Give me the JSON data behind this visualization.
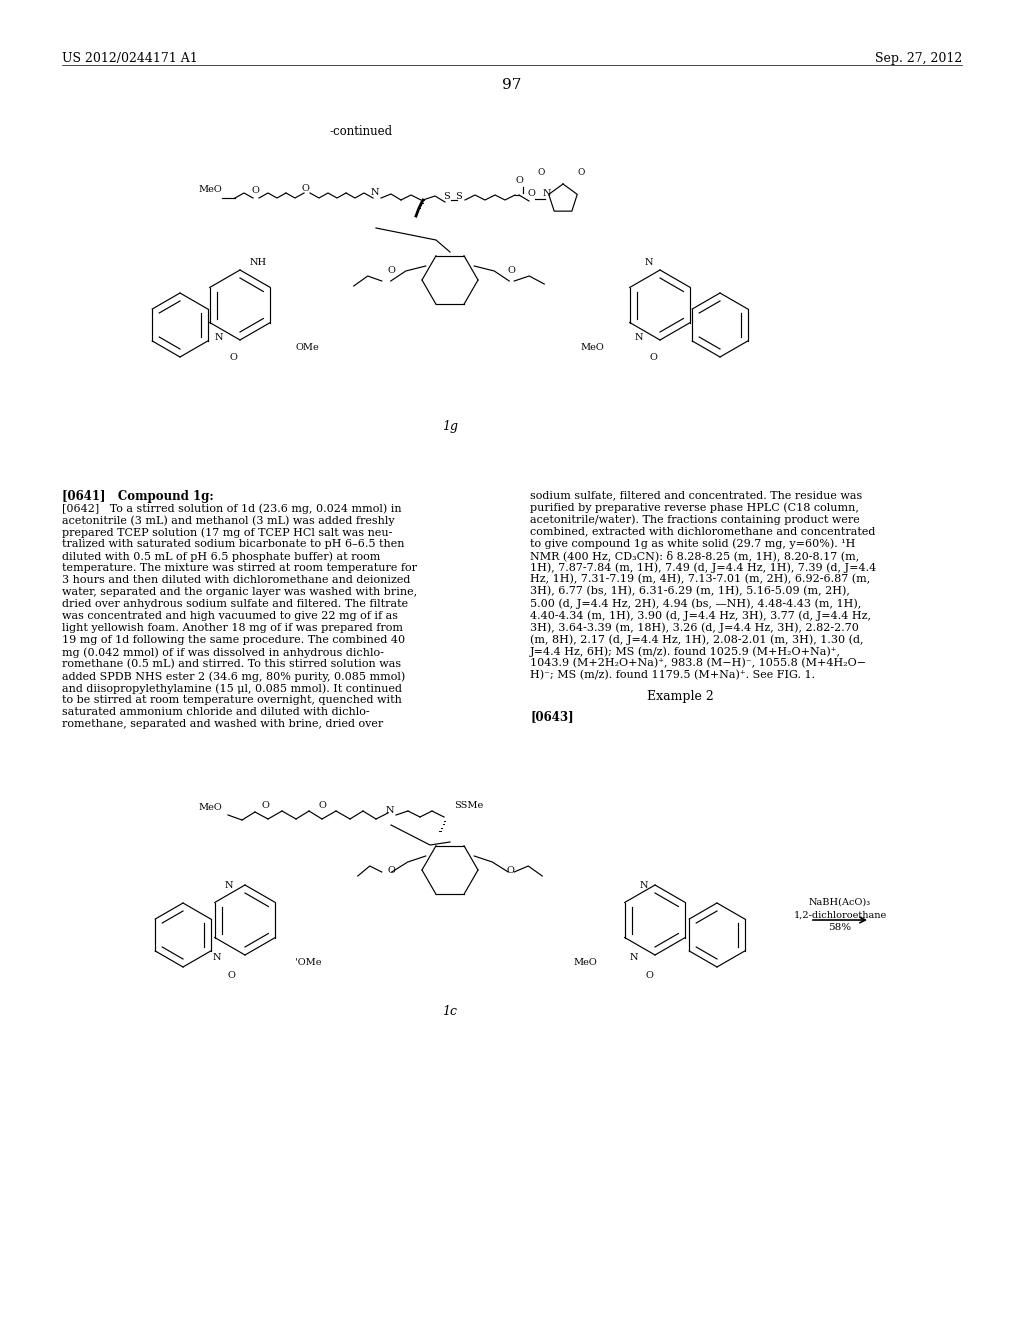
{
  "bg_color": "#ffffff",
  "header_left": "US 2012/0244171 A1",
  "header_right": "Sep. 27, 2012",
  "page_number": "97",
  "continued_label": "-continued",
  "compound_label_top": "1g",
  "compound_label_bottom": "1c",
  "paragraph_0641": "[0641]",
  "paragraph_0641_text": "Compound 1g:",
  "paragraph_0642": "[0642]",
  "paragraph_0642_text": "To a stirred solution of 1d (23.6 mg, 0.024 mmol) in acetonitrile (3 mL) and methanol (3 mL) was added freshly prepared TCEP solution (17 mg of TCEP HCl salt was neutralized with saturated sodium bicarbonate to pH 6–6.5 then diluted with 0.5 mL of pH 6.5 phosphate buffer) at room temperature. The mixture was stirred at room temperature for 3 hours and then diluted with dichloromethane and deionized water, separated and the organic layer was washed with brine, dried over anhydrous sodium sulfate and filtered. The filtrate was concentrated and high vacuumed to give 22 mg of if as light yellowish foam. Another 18 mg of if was prepared from 19 mg of 1d following the same procedure. The combined 40 mg (0.042 mmol) of if was dissolved in anhydrous dichloromethane (0.5 mL) and stirred. To this stirred solution was added SPDB NHS ester 2 (34.6 mg, 80% purity, 0.085 mmol) and diisopropylethylamine (15 μl, 0.085 mmol). It continued to be stirred at room temperature overnight, quenched with saturated ammonium chloride and diluted with dichloromethane, separated and washed with brine, dried over",
  "right_col_text": "sodium sulfate, filtered and concentrated. The residue was purified by preparative reverse phase HPLC (C18 column, acetonitrile/water). The fractions containing product were combined, extracted with dichloromethane and concentrated to give compound 1g as white solid (29.7 mg, y=60%). ¹H NMR (400 Hz, CD₃CN): δ 8.28-8.25 (m, 1H), 8.20-8.17 (m, 1H), 7.87-7.84 (m, 1H), 7.49 (d, J=4.4 Hz, 1H), 7.39 (d, J=4.4 Hz, 1H), 7.31-7.19 (m, 4H), 7.13-7.01 (m, 2H), 6.92-6.87 (m, 3H), 6.77 (bs, 1H), 6.31-6.29 (m, 1H), 5.16-5.09 (m, 2H), 5.00 (d, J=4.4 Hz, 2H), 4.94 (bs, —NH), 4.48-4.43 (m, 1H), 4.40-4.34 (m, 1H), 3.90 (d, J=4.4 Hz, 3H), 3.77 (d, J=4.4 Hz, 3H), 3.64-3.39 (m, 18H), 3.26 (d, J=4.4 Hz, 3H), 2.82-2.70 (m, 8H), 2.17 (d, J=4.4 Hz, 1H), 2.08-2.01 (m, 3H), 1.30 (d, J=4.4 Hz, 6H); MS (m/z). found 1025.9 (M+H₂O+Na)⁺, 1043.9 (M+2H₂O+Na)⁺, 983.8 (M−H)⁻, 1055.8 (M+4H₂O−H)⁻; MS (m/z). found 1179.5 (M+Na)⁺. See FIG. 1.",
  "example2_label": "Example 2",
  "paragraph_0643": "[0643]",
  "reagent_line1": "NaBH(AcO)₃",
  "reagent_line2": "1,2-dichloroethane",
  "reagent_line3": "58%"
}
